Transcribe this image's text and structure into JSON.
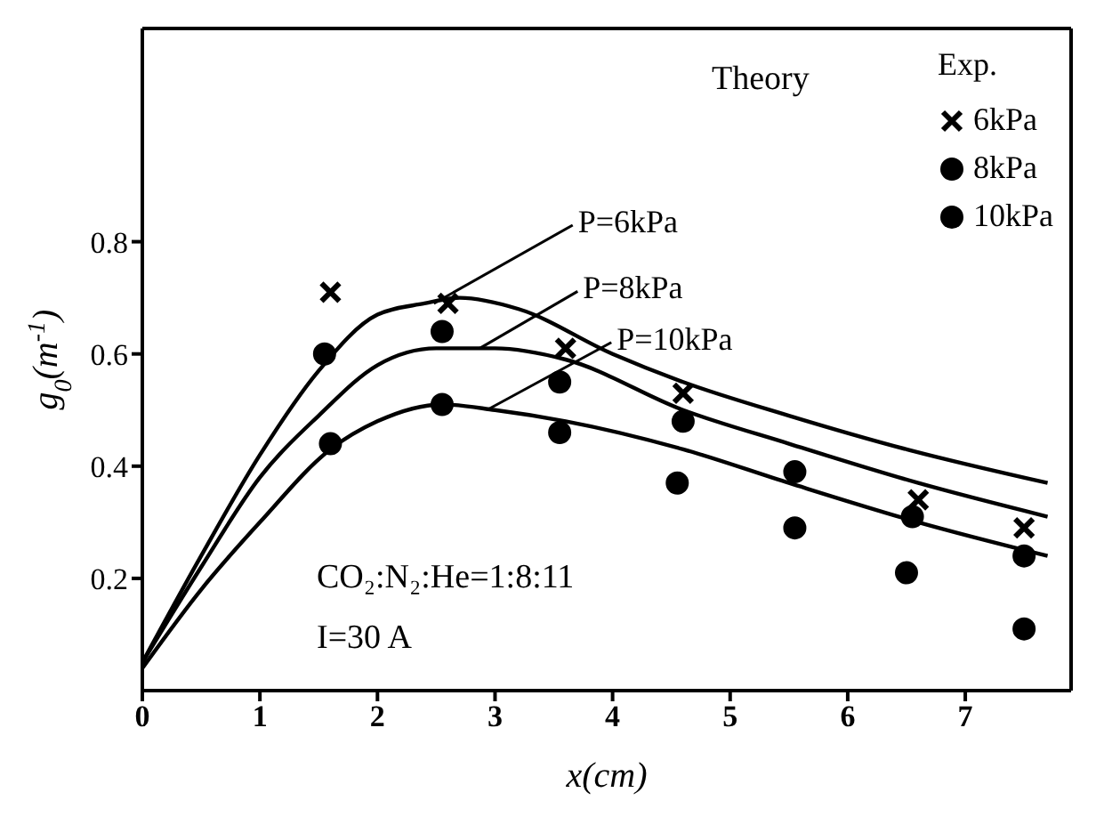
{
  "chart_data": {
    "type": "line",
    "xlabel": "x(cm)",
    "ylabel": "g$_{0}$(m$^{-1}$)",
    "legend_title": "Exp.",
    "xlim": [
      0,
      7.9
    ],
    "xticks": [
      0,
      1,
      2,
      3,
      4,
      5,
      6,
      7
    ],
    "ylim": [
      0,
      1.18
    ],
    "yticks": [
      0.2,
      0.4,
      0.6,
      0.8
    ],
    "grid": false,
    "legend": "top right",
    "series": [
      {
        "color": "#000000",
        "marker": "none",
        "x": [
          0,
          0.5,
          1,
          1.5,
          2,
          2.4,
          2.7,
          3.2,
          4,
          4.6,
          5.5,
          6.5,
          7.7
        ],
        "values": [
          0.05,
          0.24,
          0.42,
          0.57,
          0.67,
          0.69,
          0.7,
          0.68,
          0.6,
          0.55,
          0.49,
          0.43,
          0.37
        ]
      },
      {
        "color": "#000000",
        "marker": "none",
        "x": [
          0,
          0.5,
          1,
          1.5,
          2,
          2.5,
          3,
          3.6,
          4.6,
          5.5,
          6.6,
          7.7
        ],
        "values": [
          0.05,
          0.22,
          0.38,
          0.49,
          0.58,
          0.61,
          0.61,
          0.59,
          0.5,
          0.44,
          0.37,
          0.31
        ]
      },
      {
        "color": "#000000",
        "marker": "none",
        "x": [
          0,
          0.5,
          1,
          1.6,
          2,
          2.55,
          3,
          3.6,
          4.6,
          5.5,
          6.6,
          7.7
        ],
        "values": [
          0.04,
          0.18,
          0.3,
          0.43,
          0.48,
          0.51,
          0.5,
          0.48,
          0.43,
          0.37,
          0.3,
          0.24
        ]
      },
      {
        "type": "scatter",
        "name": "6kPa",
        "color": "#000000",
        "marker": "cross",
        "x": [
          1.6,
          2.6,
          3.6,
          4.6,
          6.6,
          7.5
        ],
        "values": [
          0.71,
          0.69,
          0.61,
          0.53,
          0.34,
          0.29
        ]
      },
      {
        "type": "scatter",
        "name": "8kPa",
        "color": "#000000",
        "marker": "circle",
        "x": [
          1.55,
          2.55,
          3.55,
          4.6,
          5.55,
          6.55,
          7.5
        ],
        "values": [
          0.6,
          0.64,
          0.55,
          0.48,
          0.39,
          0.31,
          0.24
        ]
      },
      {
        "type": "scatter",
        "name": "10kPa",
        "color": "#000000",
        "marker": "circle",
        "x": [
          1.6,
          2.55,
          3.55,
          4.55,
          5.55,
          6.5,
          7.5
        ],
        "values": [
          0.44,
          0.51,
          0.46,
          0.37,
          0.29,
          0.21,
          0.11
        ]
      }
    ],
    "annotations": [
      "Theory",
      {
        "text": "P=6kPa",
        "x": 2.48,
        "y": 0.69
      },
      {
        "text": "P=8kPa",
        "x": 2.87,
        "y": 0.61
      },
      {
        "text": "P=10kPa",
        "x": 2.93,
        "y": 0.5
      },
      "CO₂:N₂:He=1:8:11",
      "I=30 A"
    ]
  }
}
